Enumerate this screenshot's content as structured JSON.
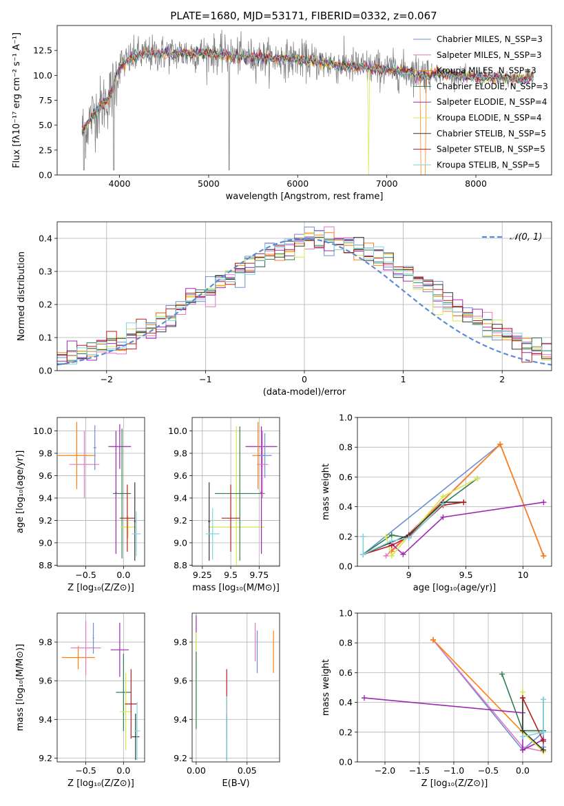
{
  "figure": {
    "title": "PLATE=1680, MJD=53171, FIBERID=0332, z=0.067"
  },
  "colors": {
    "c1": "#6a8fd0",
    "c2": "#e377c2",
    "c3": "#ff7f0e",
    "c4": "#2e7d4f",
    "c5": "#9c27b0",
    "c6": "#d4e84a",
    "c7": "#333333",
    "c8": "#b71c1c",
    "c9": "#7fd6e0",
    "data": "#808080",
    "normal": "#5b8bd8"
  },
  "chart_data": [
    {
      "id": "spectrum",
      "type": "line",
      "xlabel": "wavelength [Angstrom, rest frame]",
      "ylabel": "Flux [fλ10⁻¹⁷ erg cm⁻² s⁻¹ A⁻¹]",
      "xlim": [
        3300,
        8850
      ],
      "ylim": [
        0,
        15
      ],
      "xticks": [
        4000,
        5000,
        6000,
        7000,
        8000
      ],
      "yticks": [
        0.0,
        2.5,
        5.0,
        7.5,
        10.0,
        12.5
      ],
      "legend_position": "top-right",
      "continuum": [
        [
          3600,
          4.5
        ],
        [
          3700,
          6.0
        ],
        [
          3800,
          7.0
        ],
        [
          3900,
          8.0
        ],
        [
          4000,
          11.0
        ],
        [
          4200,
          12.0
        ],
        [
          4500,
          12.2
        ],
        [
          5000,
          12.2
        ],
        [
          5500,
          11.8
        ],
        [
          6000,
          11.6
        ],
        [
          6500,
          11.0
        ],
        [
          7000,
          10.6
        ],
        [
          7500,
          10.2
        ],
        [
          8000,
          9.8
        ],
        [
          8500,
          9.6
        ],
        [
          8650,
          10.0
        ]
      ],
      "series": [
        {
          "name": "Chabrier MILES, N_SSP=3",
          "color": "#6a8fd0"
        },
        {
          "name": "Salpeter MILES, N_SSP=3",
          "color": "#e377c2"
        },
        {
          "name": "Kroupa MILES, N_SSP=3",
          "color": "#ff7f0e"
        },
        {
          "name": "Chabrier ELODIE, N_SSP=3",
          "color": "#2e7d4f"
        },
        {
          "name": "Salpeter ELODIE, N_SSP=4",
          "color": "#9c27b0"
        },
        {
          "name": "Kroupa ELODIE, N_SSP=4",
          "color": "#d4e84a"
        },
        {
          "name": "Chabrier STELIB, N_SSP=5",
          "color": "#333333"
        },
        {
          "name": "Salpeter STELIB, N_SSP=5",
          "color": "#b71c1c"
        },
        {
          "name": "Kroupa STELIB, N_SSP=5",
          "color": "#7fd6e0"
        }
      ]
    },
    {
      "id": "residuals",
      "type": "line",
      "xlabel": "(data-model)/error",
      "ylabel": "Normed distribution",
      "xlim": [
        -2.5,
        2.5
      ],
      "ylim": [
        0,
        0.45
      ],
      "xticks": [
        -2,
        -1,
        0,
        1,
        2
      ],
      "xtick_labels": [
        "−2",
        "−1",
        "0",
        "1",
        "2"
      ],
      "yticks": [
        0.0,
        0.1,
        0.2,
        0.3,
        0.4
      ],
      "grid": true,
      "legend_position": "top-right",
      "normal_label": "𝒩(0, 1)",
      "bin_width": 0.1
    },
    {
      "id": "age_vs_Z",
      "type": "scatter",
      "xlabel": "Z [log₁₀(Z/Z⊙)]",
      "ylabel": "age  [log₁₀(age/yr)]",
      "xlim": [
        -0.88,
        0.28
      ],
      "ylim": [
        8.79,
        10.12
      ],
      "xticks": [
        -0.5,
        0.0
      ],
      "xtick_labels": [
        "−0.5",
        "0.0"
      ],
      "yticks": [
        8.8,
        9.0,
        9.2,
        9.4,
        9.6,
        9.8,
        10.0
      ],
      "grid": true,
      "points": [
        {
          "c": "#ff7f0e",
          "x": -0.62,
          "xerr": 0.25,
          "y": 9.78,
          "yerr": 0.3
        },
        {
          "c": "#e377c2",
          "x": -0.52,
          "xerr": 0.2,
          "y": 9.7,
          "yerr": 0.3
        },
        {
          "c": "#6a8fd0",
          "x": -0.38,
          "xerr": 0.02,
          "y": 9.85,
          "yerr": 0.2
        },
        {
          "c": "#9c27b0",
          "x": -0.05,
          "xerr": 0.15,
          "y": 9.86,
          "yerr": 0.2
        },
        {
          "c": "#9c27b0",
          "x": -0.1,
          "xerr": 0.01,
          "y": 9.45,
          "yerr": 0.55
        },
        {
          "c": "#2e7d4f",
          "x": -0.02,
          "xerr": 0.12,
          "y": 9.44,
          "yerr": 0.58
        },
        {
          "c": "#d4e84a",
          "x": 0.06,
          "xerr": 0.1,
          "y": 9.14,
          "yerr": 0.1
        },
        {
          "c": "#b71c1c",
          "x": 0.05,
          "xerr": 0.1,
          "y": 9.22,
          "yerr": 0.3
        },
        {
          "c": "#333333",
          "x": 0.15,
          "xerr": 0.01,
          "y": 9.19,
          "yerr": 0.35
        },
        {
          "c": "#7fd6e0",
          "x": 0.17,
          "xerr": 0.06,
          "y": 9.08,
          "yerr": 0.2
        }
      ]
    },
    {
      "id": "age_vs_mass",
      "type": "scatter",
      "xlabel": "mass [log₁₀(M/M⊙)]",
      "ylabel": "",
      "xlim": [
        9.16,
        9.93
      ],
      "ylim": [
        8.79,
        10.12
      ],
      "xticks": [
        9.25,
        9.5,
        9.75
      ],
      "yticks": [
        8.8,
        9.0,
        9.2,
        9.4,
        9.6,
        9.8,
        10.0
      ],
      "grid": true,
      "points": [
        {
          "c": "#d4e84a",
          "x": 9.55,
          "xerr": 0.25,
          "y": 9.14,
          "yerr": 0.9
        },
        {
          "c": "#2e7d4f",
          "x": 9.58,
          "xerr": 0.22,
          "y": 9.44,
          "yerr": 0.6
        },
        {
          "c": "#b71c1c",
          "x": 9.5,
          "xerr": 0.08,
          "y": 9.22,
          "yerr": 0.3
        },
        {
          "c": "#333333",
          "x": 9.31,
          "xerr": 0.01,
          "y": 9.19,
          "yerr": 0.35
        },
        {
          "c": "#7fd6e0",
          "x": 9.34,
          "xerr": 0.06,
          "y": 9.08,
          "yerr": 0.23
        },
        {
          "c": "#9c27b0",
          "x": 9.77,
          "xerr": 0.14,
          "y": 9.86,
          "yerr": 0.18
        },
        {
          "c": "#9c27b0",
          "x": 9.77,
          "xerr": 0.01,
          "y": 9.45,
          "yerr": 0.55
        },
        {
          "c": "#ff7f0e",
          "x": 9.74,
          "xerr": 0.05,
          "y": 9.78,
          "yerr": 0.3
        },
        {
          "c": "#e377c2",
          "x": 9.78,
          "xerr": 0.05,
          "y": 9.7,
          "yerr": 0.3
        },
        {
          "c": "#6a8fd0",
          "x": 9.8,
          "xerr": 0.06,
          "y": 9.78,
          "yerr": 0.2
        }
      ]
    },
    {
      "id": "weight_vs_age",
      "type": "line",
      "xlabel": "age  [log₁₀(age/yr)]",
      "ylabel": "mass weight",
      "xlim": [
        8.55,
        10.25
      ],
      "ylim": [
        0,
        1.0
      ],
      "xticks": [
        9.0,
        9.5,
        10.0
      ],
      "yticks": [
        0.0,
        0.2,
        0.4,
        0.6,
        0.8,
        1.0
      ],
      "grid": true,
      "series": [
        {
          "c": "#6a8fd0",
          "pts": [
            [
              8.6,
              0.2
            ],
            [
              8.6,
              0.08
            ],
            [
              9.8,
              0.82
            ],
            [
              10.18,
              0.07
            ]
          ]
        },
        {
          "c": "#e377c2",
          "pts": [
            [
              8.8,
              0.07
            ],
            [
              9.8,
              0.82
            ],
            [
              10.18,
              0.07
            ]
          ]
        },
        {
          "c": "#ff7f0e",
          "pts": [
            [
              8.85,
              0.1
            ],
            [
              9.8,
              0.82
            ],
            [
              10.18,
              0.07
            ]
          ]
        },
        {
          "c": "#2e7d4f",
          "pts": [
            [
              8.6,
              0.08
            ],
            [
              8.85,
              0.21
            ],
            [
              9.0,
              0.19
            ],
            [
              9.3,
              0.42
            ],
            [
              9.6,
              0.59
            ]
          ]
        },
        {
          "c": "#9c27b0",
          "pts": [
            [
              8.85,
              0.15
            ],
            [
              8.95,
              0.08
            ],
            [
              9.3,
              0.33
            ],
            [
              10.18,
              0.43
            ]
          ]
        },
        {
          "c": "#d4e84a",
          "pts": [
            [
              8.8,
              0.2
            ],
            [
              8.85,
              0.07
            ],
            [
              9.3,
              0.47
            ],
            [
              9.6,
              0.59
            ]
          ]
        },
        {
          "c": "#333333",
          "pts": [
            [
              8.6,
              0.08
            ],
            [
              9.0,
              0.21
            ],
            [
              9.3,
              0.43
            ],
            [
              9.48,
              0.43
            ]
          ]
        },
        {
          "c": "#b71c1c",
          "pts": [
            [
              8.6,
              0.08
            ],
            [
              8.85,
              0.14
            ],
            [
              9.0,
              0.2
            ],
            [
              9.3,
              0.41
            ],
            [
              9.48,
              0.43
            ]
          ]
        },
        {
          "c": "#7fd6e0",
          "pts": [
            [
              8.6,
              0.2
            ],
            [
              8.6,
              0.08
            ],
            [
              8.85,
              0.17
            ],
            [
              9.0,
              0.19
            ],
            [
              9.3,
              0.42
            ]
          ]
        }
      ]
    },
    {
      "id": "mass_vs_Z",
      "type": "scatter",
      "xlabel": "Z [log₁₀(Z/Z⊙)]",
      "ylabel": "mass [log₁₀(M/M⊙)]",
      "xlim": [
        -0.88,
        0.28
      ],
      "ylim": [
        9.18,
        9.95
      ],
      "xticks": [
        -0.5,
        0.0
      ],
      "xtick_labels": [
        "−0.5",
        "0.0"
      ],
      "yticks": [
        9.2,
        9.4,
        9.6,
        9.8
      ],
      "grid": true,
      "points": [
        {
          "c": "#ff7f0e",
          "x": -0.6,
          "xerr": 0.22,
          "y": 9.72,
          "yerr": 0.06
        },
        {
          "c": "#e377c2",
          "x": -0.5,
          "xerr": 0.2,
          "y": 9.77,
          "yerr": 0.14
        },
        {
          "c": "#6a8fd0",
          "x": -0.4,
          "xerr": 0.01,
          "y": 9.82,
          "yerr": 0.08
        },
        {
          "c": "#9c27b0",
          "x": -0.05,
          "xerr": 0.12,
          "y": 9.76,
          "yerr": 0.14
        },
        {
          "c": "#2e7d4f",
          "x": 0.0,
          "xerr": 0.1,
          "y": 9.54,
          "yerr": 0.2
        },
        {
          "c": "#d4e84a",
          "x": 0.03,
          "xerr": 0.08,
          "y": 9.44,
          "yerr": 0.2
        },
        {
          "c": "#b71c1c",
          "x": 0.1,
          "xerr": 0.08,
          "y": 9.48,
          "yerr": 0.18
        },
        {
          "c": "#333333",
          "x": 0.16,
          "xerr": 0.05,
          "y": 9.31,
          "yerr": 0.12
        },
        {
          "c": "#7fd6e0",
          "x": 0.18,
          "xerr": 0.04,
          "y": 9.34,
          "yerr": 0.15
        }
      ]
    },
    {
      "id": "mass_vs_ebv",
      "type": "scatter",
      "xlabel": "E(B-V)",
      "ylabel": "",
      "xlim": [
        -0.004,
        0.082
      ],
      "ylim": [
        9.18,
        9.95
      ],
      "xticks": [
        0.0,
        0.05
      ],
      "xtick_labels": [
        "0.00",
        "0.05"
      ],
      "yticks": [
        9.2,
        9.4,
        9.6,
        9.8
      ],
      "grid": true,
      "points": [
        {
          "c": "#9c27b0",
          "x": 0.0,
          "xerr": 0,
          "y": 9.84,
          "yerr": 0.1
        },
        {
          "c": "#d4e84a",
          "x": 0.0,
          "xerr": 0,
          "y": 9.6,
          "yerr": 0.25
        },
        {
          "c": "#2e7d4f",
          "x": 0.0,
          "xerr": 0,
          "y": 9.55,
          "yerr": 0.2
        },
        {
          "c": "#b71c1c",
          "x": 0.03,
          "xerr": 0,
          "y": 9.48,
          "yerr": 0.18
        },
        {
          "c": "#333333",
          "x": 0.03,
          "xerr": 0,
          "y": 9.31,
          "yerr": 0.12
        },
        {
          "c": "#7fd6e0",
          "x": 0.03,
          "xerr": 0,
          "y": 9.35,
          "yerr": 0.17
        },
        {
          "c": "#e377c2",
          "x": 0.058,
          "xerr": 0,
          "y": 9.8,
          "yerr": 0.1
        },
        {
          "c": "#6a8fd0",
          "x": 0.06,
          "xerr": 0,
          "y": 9.75,
          "yerr": 0.11
        },
        {
          "c": "#ff7f0e",
          "x": 0.076,
          "xerr": 0,
          "y": 9.75,
          "yerr": 0.11
        }
      ]
    },
    {
      "id": "weight_vs_Z",
      "type": "line",
      "xlabel": "Z [log₁₀(Z/Z⊙)]",
      "ylabel": "mass weight",
      "xlim": [
        -2.4,
        0.42
      ],
      "ylim": [
        0,
        1.0
      ],
      "xticks": [
        -2.0,
        -1.5,
        -1.0,
        -0.5,
        0.0
      ],
      "xtick_labels": [
        "−2.0",
        "−1.5",
        "−1.0",
        "−0.5",
        "0.0"
      ],
      "yticks": [
        0.0,
        0.2,
        0.4,
        0.6,
        0.8,
        1.0
      ],
      "grid": true,
      "series": [
        {
          "c": "#6a8fd0",
          "pts": [
            [
              -1.3,
              0.82
            ],
            [
              0.0,
              0.08
            ],
            [
              0.3,
              0.2
            ],
            [
              0.3,
              0.1
            ]
          ]
        },
        {
          "c": "#e377c2",
          "pts": [
            [
              -1.3,
              0.82
            ],
            [
              0.0,
              0.1
            ],
            [
              0.3,
              0.07
            ]
          ]
        },
        {
          "c": "#ff7f0e",
          "pts": [
            [
              -1.3,
              0.82
            ],
            [
              0.0,
              0.2
            ],
            [
              0.3,
              0.07
            ]
          ]
        },
        {
          "c": "#2e7d4f",
          "pts": [
            [
              -0.3,
              0.59
            ],
            [
              0.0,
              0.21
            ],
            [
              0.3,
              0.21
            ],
            [
              0.3,
              0.42
            ]
          ]
        },
        {
          "c": "#9c27b0",
          "pts": [
            [
              -2.3,
              0.43
            ],
            [
              0.0,
              0.33
            ],
            [
              0.0,
              0.08
            ],
            [
              0.3,
              0.15
            ]
          ]
        },
        {
          "c": "#d4e84a",
          "pts": [
            [
              0.0,
              0.47
            ],
            [
              0.0,
              0.2
            ],
            [
              0.3,
              0.07
            ]
          ]
        },
        {
          "c": "#333333",
          "pts": [
            [
              0.0,
              0.43
            ],
            [
              0.0,
              0.21
            ],
            [
              0.3,
              0.08
            ]
          ]
        },
        {
          "c": "#b71c1c",
          "pts": [
            [
              0.0,
              0.43
            ],
            [
              0.3,
              0.14
            ]
          ]
        },
        {
          "c": "#7fd6e0",
          "pts": [
            [
              0.0,
              0.17
            ],
            [
              0.3,
              0.2
            ],
            [
              0.3,
              0.42
            ]
          ]
        }
      ]
    }
  ]
}
